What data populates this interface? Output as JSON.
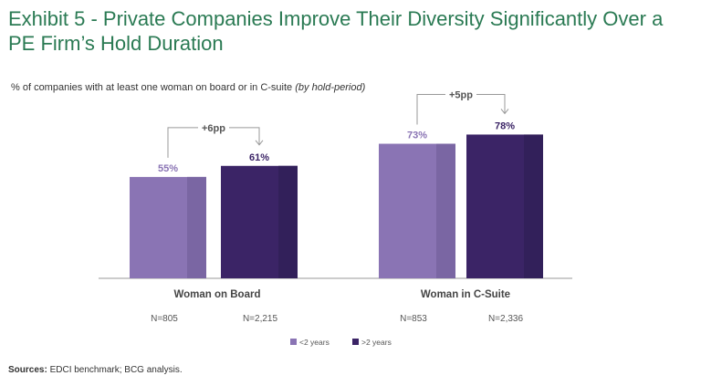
{
  "title": "Exhibit 5 - Private Companies Improve Their Diversity Significantly Over a PE Firm’s Hold Duration",
  "subtitle_main": "% of companies with at least one woman on board or in C-suite",
  "subtitle_italic": "(by hold-period)",
  "sources_label": "Sources:",
  "sources_text": "EDCI benchmark; BCG analysis.",
  "colors": {
    "title": "#2a7a53",
    "short_hold": "#8a74b4",
    "short_hold_shade": "#7a66a3",
    "long_hold": "#3b2466",
    "long_hold_shade": "#32205a",
    "baseline": "#999999",
    "bracket": "#999999"
  },
  "chart_data": {
    "type": "bar",
    "title": "Exhibit 5 - Private Companies Improve Their Diversity Significantly Over a PE Firm’s Hold Duration",
    "ylabel": "% of companies with at least one woman on board or in C-suite (by hold-period)",
    "ylim": [
      0,
      100
    ],
    "grid": false,
    "legend_position": "bottom-center",
    "categories": [
      "Woman on Board",
      "Woman in C-Suite"
    ],
    "series": [
      {
        "name": "<2 years",
        "values": [
          55,
          73
        ],
        "labels": [
          "55%",
          "73%"
        ],
        "n_labels": [
          "N=805",
          "N=853"
        ]
      },
      {
        "name": ">2 years",
        "values": [
          61,
          78
        ],
        "labels": [
          "61%",
          "78%"
        ],
        "n_labels": [
          "N=2,215",
          "N=2,336"
        ]
      }
    ],
    "annotations": [
      "+6pp",
      "+5pp"
    ]
  }
}
